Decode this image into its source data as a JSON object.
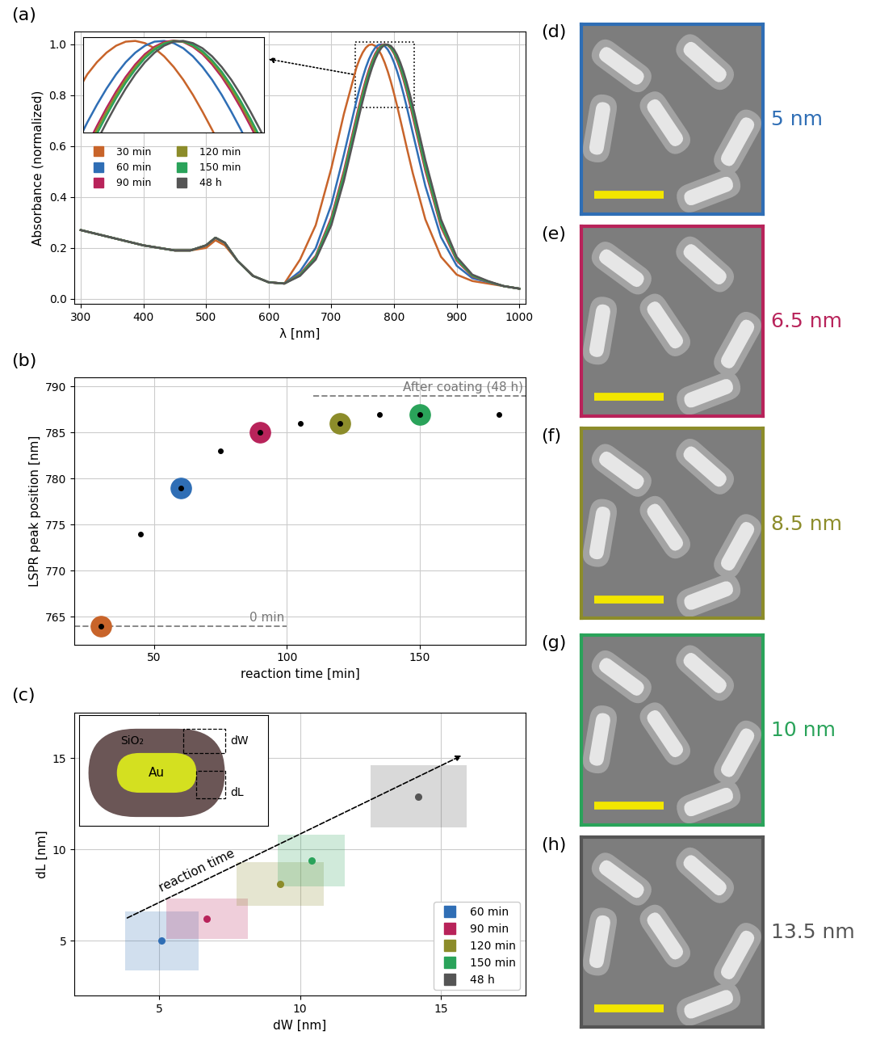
{
  "chart_data": [
    {
      "type": "line",
      "title": "(a)",
      "x_label": "λ [nm]",
      "y_label": "Absorbance (normalized)",
      "x": [
        300,
        350,
        400,
        450,
        475,
        500,
        515,
        530,
        550,
        575,
        600,
        625,
        650,
        675,
        700,
        720,
        740,
        745,
        750,
        755,
        760,
        765,
        770,
        775,
        780,
        785,
        790,
        795,
        800,
        805,
        810,
        815,
        820,
        825,
        830,
        850,
        875,
        900,
        925,
        950,
        975,
        1000
      ],
      "series": [
        {
          "name": "30 min",
          "color": "#c8642a",
          "values": [
            0.27,
            0.24,
            0.21,
            0.19,
            0.19,
            0.2,
            0.23,
            0.21,
            0.15,
            0.09,
            0.065,
            0.06,
            0.154,
            0.289,
            0.513,
            0.726,
            0.908,
            0.941,
            0.967,
            0.986,
            0.997,
            0.999,
            0.993,
            0.979,
            0.957,
            0.928,
            0.893,
            0.852,
            0.806,
            0.757,
            0.704,
            0.651,
            0.597,
            0.545,
            0.493,
            0.312,
            0.165,
            0.095,
            0.07,
            0.06,
            0.05,
            0.04
          ]
        },
        {
          "name": "60 min",
          "color": "#2f6eb5",
          "values": [
            0.27,
            0.24,
            0.21,
            0.19,
            0.19,
            0.21,
            0.24,
            0.22,
            0.15,
            0.09,
            0.065,
            0.06,
            0.108,
            0.199,
            0.37,
            0.566,
            0.777,
            0.825,
            0.869,
            0.908,
            0.941,
            0.967,
            0.986,
            0.997,
            0.999,
            0.993,
            0.979,
            0.957,
            0.928,
            0.893,
            0.852,
            0.806,
            0.757,
            0.704,
            0.651,
            0.443,
            0.242,
            0.13,
            0.081,
            0.066,
            0.05,
            0.04
          ]
        },
        {
          "name": "90 min",
          "color": "#b8235a",
          "values": [
            0.27,
            0.24,
            0.21,
            0.19,
            0.19,
            0.21,
            0.24,
            0.22,
            0.15,
            0.09,
            0.065,
            0.06,
            0.097,
            0.169,
            0.32,
            0.503,
            0.715,
            0.767,
            0.816,
            0.861,
            0.901,
            0.935,
            0.963,
            0.983,
            0.996,
            1.0,
            0.996,
            0.983,
            0.963,
            0.935,
            0.901,
            0.861,
            0.816,
            0.767,
            0.715,
            0.503,
            0.282,
            0.15,
            0.088,
            0.067,
            0.05,
            0.04
          ]
        },
        {
          "name": "120 min",
          "color": "#8c8c2a",
          "values": [
            0.27,
            0.24,
            0.21,
            0.19,
            0.19,
            0.21,
            0.24,
            0.22,
            0.15,
            0.09,
            0.065,
            0.06,
            0.095,
            0.165,
            0.312,
            0.493,
            0.704,
            0.757,
            0.806,
            0.852,
            0.893,
            0.928,
            0.957,
            0.979,
            0.993,
            0.999,
            0.997,
            0.986,
            0.967,
            0.941,
            0.908,
            0.869,
            0.825,
            0.777,
            0.726,
            0.513,
            0.289,
            0.154,
            0.09,
            0.068,
            0.05,
            0.04
          ]
        },
        {
          "name": "150 min",
          "color": "#2aa35a",
          "values": [
            0.27,
            0.24,
            0.21,
            0.19,
            0.19,
            0.21,
            0.24,
            0.22,
            0.15,
            0.09,
            0.065,
            0.06,
            0.093,
            0.162,
            0.305,
            0.483,
            0.694,
            0.746,
            0.796,
            0.843,
            0.885,
            0.921,
            0.952,
            0.975,
            0.991,
            0.998,
            0.998,
            0.988,
            0.971,
            0.946,
            0.915,
            0.877,
            0.834,
            0.787,
            0.736,
            0.523,
            0.297,
            0.158,
            0.092,
            0.068,
            0.05,
            0.04
          ]
        },
        {
          "name": "48 h",
          "color": "#555555",
          "values": [
            0.27,
            0.24,
            0.21,
            0.19,
            0.19,
            0.21,
            0.24,
            0.22,
            0.15,
            0.09,
            0.065,
            0.06,
            0.09,
            0.154,
            0.289,
            0.463,
            0.673,
            0.726,
            0.777,
            0.825,
            0.869,
            0.908,
            0.941,
            0.967,
            0.986,
            0.997,
            0.999,
            0.993,
            0.979,
            0.957,
            0.928,
            0.893,
            0.852,
            0.806,
            0.757,
            0.545,
            0.312,
            0.165,
            0.095,
            0.07,
            0.05,
            0.04
          ]
        }
      ],
      "xlim": [
        290,
        1010
      ],
      "xticks": [
        300,
        400,
        500,
        600,
        700,
        800,
        900,
        1000
      ],
      "ylim": [
        -0.02,
        1.05
      ],
      "yticks": [
        {
          "value": 0,
          "label": "0.0"
        },
        {
          "value": 0.2,
          "label": "0.2"
        },
        {
          "value": 0.4,
          "label": "0.4"
        },
        {
          "value": 0.6,
          "label": "0.6"
        },
        {
          "value": 0.8,
          "label": "0.8"
        },
        {
          "value": 1,
          "label": "1.0"
        }
      ],
      "grid": true,
      "legend": "center left",
      "inset": {
        "xlim": [
          738,
          832
        ],
        "ylim": [
          0.75,
          1.01
        ],
        "tick_labels": false
      }
    },
    {
      "type": "scatter",
      "title": "(b)",
      "x_label": "reaction time [min]",
      "y_label": "LSPR peak position [nm]",
      "x": [
        30,
        45,
        60,
        75,
        90,
        105,
        120,
        135,
        150,
        180
      ],
      "values": [
        764,
        774,
        779,
        783,
        785,
        786,
        786,
        787,
        787,
        787
      ],
      "color": "#000000",
      "highlighted": {
        "x": [
          30,
          60,
          90,
          120,
          150
        ],
        "colors": [
          "#c8642a",
          "#2f6eb5",
          "#b8235a",
          "#8c8c2a",
          "#2aa35a"
        ]
      },
      "reference_lines": [
        {
          "value": 764,
          "label": "0 min",
          "x": [
            20,
            100
          ]
        },
        {
          "value": 789,
          "label": "After coating (48 h)",
          "x": [
            110,
            190
          ]
        }
      ],
      "xlim": [
        20,
        190
      ],
      "xticks": [
        50,
        100,
        150
      ],
      "ylim": [
        762,
        791
      ],
      "yticks": [
        765,
        770,
        775,
        780,
        785,
        790
      ],
      "grid": true
    },
    {
      "type": "scatter",
      "title": "(c)",
      "x_label": "dW [nm]",
      "y_label": "dL [nm]",
      "series": [
        {
          "name": "60 min",
          "color": "#2f6eb5",
          "x": [
            5.1
          ],
          "values": [
            5.0
          ],
          "x_error": [
            1.3
          ],
          "y_error": [
            1.6
          ]
        },
        {
          "name": "90 min",
          "color": "#b8235a",
          "x": [
            6.7
          ],
          "values": [
            6.2
          ],
          "x_error": [
            1.45
          ],
          "y_error": [
            1.1
          ]
        },
        {
          "name": "120 min",
          "color": "#8c8c2a",
          "x": [
            9.3
          ],
          "values": [
            8.1
          ],
          "x_error": [
            1.55
          ],
          "y_error": [
            1.2
          ]
        },
        {
          "name": "150 min",
          "color": "#2aa35a",
          "x": [
            10.4
          ],
          "values": [
            9.4
          ],
          "x_error": [
            1.2
          ],
          "y_error": [
            1.4
          ]
        },
        {
          "name": "48 h",
          "color": "#555555",
          "x": [
            14.2
          ],
          "values": [
            12.9
          ],
          "x_error": [
            1.7
          ],
          "y_error": [
            1.7
          ]
        }
      ],
      "annotation": {
        "text": "reaction time",
        "from": [
          3.8,
          6.2
        ],
        "to": [
          15.8,
          15.2
        ]
      },
      "schematic": {
        "shell": "SiO₂",
        "core": "Au",
        "width_label": "dW",
        "length_label": "dL"
      },
      "xlim": [
        2,
        18
      ],
      "xticks": [
        5,
        10,
        15
      ],
      "ylim": [
        2,
        17.5
      ],
      "yticks": [
        5,
        10,
        15
      ],
      "grid": true,
      "legend": "lower right"
    }
  ],
  "images": [
    {
      "panel": "(d)",
      "label": "5 nm",
      "color": "#2f6eb5"
    },
    {
      "panel": "(e)",
      "label": "6.5 nm",
      "color": "#b8235a"
    },
    {
      "panel": "(f)",
      "label": "8.5 nm",
      "color": "#8c8c2a"
    },
    {
      "panel": "(g)",
      "label": "10 nm",
      "color": "#2aa35a"
    },
    {
      "panel": "(h)",
      "label": "13.5 nm",
      "color": "#555555"
    }
  ]
}
